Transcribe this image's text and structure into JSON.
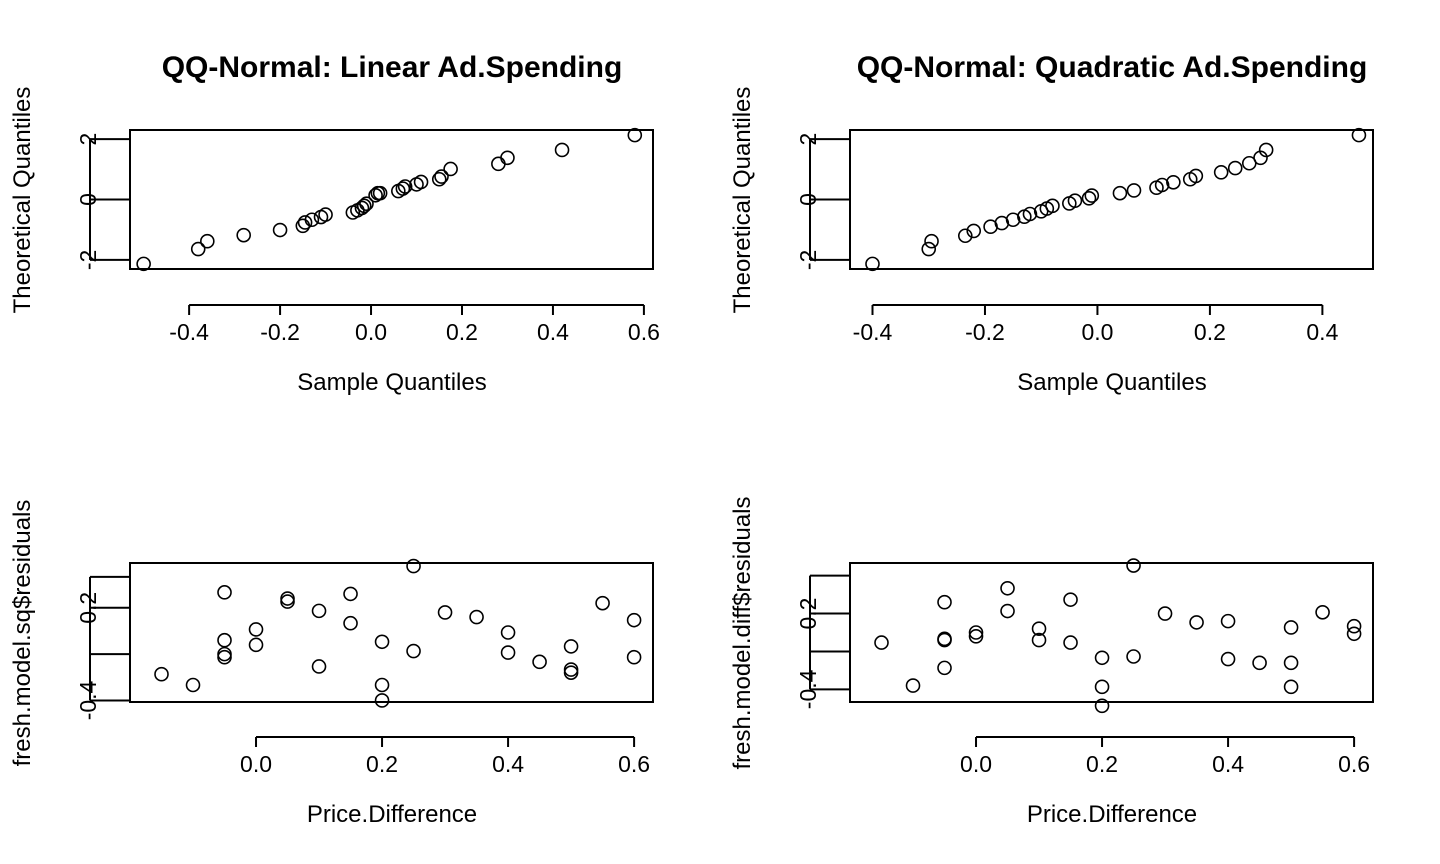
{
  "chart_data": [
    {
      "type": "scatter",
      "title": "QQ-Normal: Linear Ad.Spending",
      "xlabel": "Sample Quantiles",
      "ylabel": "Theoretical Quantiles",
      "xlim": [
        -0.53,
        0.62
      ],
      "ylim": [
        -2.3,
        2.3
      ],
      "xticks": [
        -0.4,
        -0.2,
        0.0,
        0.2,
        0.4,
        0.6
      ],
      "xtick_labels": [
        "-0.4",
        "-0.2",
        "0.0",
        "0.2",
        "0.4",
        "0.6"
      ],
      "yticks": [
        -2,
        0,
        2
      ],
      "ytick_labels": [
        "-2",
        "0",
        "2"
      ],
      "grid": false,
      "x": [
        -0.5,
        -0.38,
        -0.36,
        -0.28,
        -0.2,
        -0.15,
        -0.145,
        -0.13,
        -0.11,
        -0.1,
        -0.04,
        -0.03,
        -0.02,
        -0.015,
        -0.01,
        0.01,
        0.015,
        0.02,
        0.06,
        0.07,
        0.075,
        0.1,
        0.11,
        0.15,
        0.155,
        0.175,
        0.28,
        0.3,
        0.42,
        0.58
      ],
      "y": [
        -2.13,
        -1.64,
        -1.38,
        -1.18,
        -1.01,
        -0.87,
        -0.76,
        -0.67,
        -0.58,
        -0.5,
        -0.43,
        -0.36,
        -0.28,
        -0.21,
        -0.14,
        0.14,
        0.21,
        0.21,
        0.28,
        0.36,
        0.43,
        0.5,
        0.58,
        0.67,
        0.76,
        1.01,
        1.18,
        1.38,
        1.64,
        2.13
      ]
    },
    {
      "type": "scatter",
      "title": "QQ-Normal: Quadratic Ad.Spending",
      "xlabel": "Sample Quantiles",
      "ylabel": "Theoretical Quantiles",
      "xlim": [
        -0.44,
        0.49
      ],
      "ylim": [
        -2.3,
        2.3
      ],
      "xticks": [
        -0.4,
        -0.2,
        0.0,
        0.2,
        0.4
      ],
      "xtick_labels": [
        "-0.4",
        "-0.2",
        "0.0",
        "0.2",
        "0.4"
      ],
      "yticks": [
        -2,
        0,
        2
      ],
      "ytick_labels": [
        "-2",
        "0",
        "2"
      ],
      "grid": false,
      "x": [
        -0.4,
        -0.3,
        -0.295,
        -0.235,
        -0.22,
        -0.19,
        -0.17,
        -0.15,
        -0.13,
        -0.12,
        -0.1,
        -0.09,
        -0.08,
        -0.05,
        -0.04,
        -0.015,
        -0.01,
        0.04,
        0.065,
        0.105,
        0.115,
        0.135,
        0.165,
        0.175,
        0.22,
        0.245,
        0.27,
        0.29,
        0.3,
        0.465
      ],
      "y": [
        -2.13,
        -1.64,
        -1.38,
        -1.2,
        -1.04,
        -0.9,
        -0.78,
        -0.67,
        -0.57,
        -0.48,
        -0.39,
        -0.3,
        -0.21,
        -0.13,
        -0.04,
        0.04,
        0.13,
        0.21,
        0.3,
        0.39,
        0.48,
        0.57,
        0.67,
        0.78,
        0.9,
        1.04,
        1.2,
        1.38,
        1.64,
        2.13
      ]
    },
    {
      "type": "scatter",
      "title": "",
      "xlabel": "Price.Difference",
      "ylabel": "fresh.model.sq$residuals",
      "xlim": [
        -0.2,
        0.63
      ],
      "ylim": [
        -0.41,
        0.49
      ],
      "xticks": [
        0.0,
        0.2,
        0.4,
        0.6
      ],
      "xtick_labels": [
        "0.0",
        "0.2",
        "0.4",
        "0.6"
      ],
      "yticks": [
        -0.4,
        -0.1,
        0.2,
        0.4
      ],
      "ytick_labels": [
        "-0.4",
        "",
        "0.2",
        ""
      ],
      "grid": false,
      "x": [
        -0.15,
        -0.1,
        -0.05,
        -0.05,
        -0.05,
        -0.05,
        0.0,
        0.0,
        0.05,
        0.05,
        0.1,
        0.1,
        0.15,
        0.15,
        0.2,
        0.2,
        0.2,
        0.25,
        0.25,
        0.3,
        0.35,
        0.4,
        0.4,
        0.45,
        0.5,
        0.5,
        0.5,
        0.55,
        0.6,
        0.6
      ],
      "y": [
        -0.23,
        -0.3,
        0.3,
        -0.01,
        -0.1,
        -0.12,
        0.06,
        -0.04,
        0.26,
        0.24,
        0.18,
        -0.18,
        0.29,
        0.1,
        -0.02,
        -0.3,
        -0.4,
        -0.08,
        0.47,
        0.17,
        0.14,
        0.04,
        -0.09,
        -0.15,
        -0.05,
        -0.2,
        -0.22,
        0.23,
        0.12,
        -0.12
      ]
    },
    {
      "type": "scatter",
      "title": "",
      "xlabel": "Price.Difference",
      "ylabel": "fresh.model.diff$residuals",
      "xlim": [
        -0.2,
        0.63
      ],
      "ylim": [
        -0.5,
        0.6
      ],
      "xticks": [
        0.0,
        0.2,
        0.4,
        0.6
      ],
      "xtick_labels": [
        "0.0",
        "0.2",
        "0.4",
        "0.6"
      ],
      "yticks": [
        -0.4,
        -0.1,
        0.2,
        0.5
      ],
      "ytick_labels": [
        "-0.4",
        "",
        "0.2",
        ""
      ],
      "grid": false,
      "x": [
        -0.15,
        -0.1,
        -0.05,
        -0.05,
        -0.05,
        -0.05,
        0.0,
        0.0,
        0.05,
        0.05,
        0.1,
        0.1,
        0.15,
        0.15,
        0.2,
        0.2,
        0.2,
        0.25,
        0.25,
        0.3,
        0.35,
        0.4,
        0.4,
        0.45,
        0.5,
        0.5,
        0.5,
        0.55,
        0.6,
        0.6
      ],
      "y": [
        -0.03,
        -0.37,
        0.29,
        0.0,
        -0.01,
        -0.23,
        0.05,
        0.02,
        0.4,
        0.22,
        0.08,
        -0.01,
        0.31,
        -0.03,
        -0.15,
        -0.38,
        -0.53,
        -0.14,
        0.58,
        0.2,
        0.13,
        0.14,
        -0.16,
        -0.19,
        0.09,
        -0.19,
        -0.38,
        0.21,
        0.1,
        0.04
      ]
    }
  ]
}
